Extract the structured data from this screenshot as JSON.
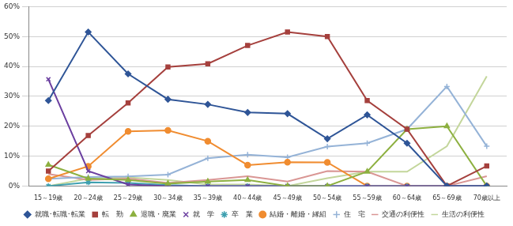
{
  "chart_data": {
    "type": "line",
    "categories": [
      "15～19歳",
      "20～24歳",
      "25～29歳",
      "30～34歳",
      "35～39歳",
      "40～44歳",
      "45～49歳",
      "50～54歳",
      "55～59歳",
      "60～64歳",
      "65～69歳",
      "70歳以上"
    ],
    "ylim": [
      0,
      60
    ],
    "yticks": [
      {
        "value": 0,
        "label": "0%"
      },
      {
        "value": 10,
        "label": "10%"
      },
      {
        "value": 20,
        "label": "20%"
      },
      {
        "value": 30,
        "label": "30%"
      },
      {
        "value": 40,
        "label": "40%"
      },
      {
        "value": 50,
        "label": "50%"
      },
      {
        "value": 60,
        "label": "60%"
      }
    ],
    "grid": true,
    "legend": "bottom",
    "series": [
      {
        "name": "就職･転職･転業",
        "color": "#2f5597",
        "marker": "diamond",
        "line_style": "solid",
        "values": [
          28.6,
          51.5,
          37.5,
          29.0,
          27.3,
          24.6,
          24.2,
          15.8,
          23.8,
          14.3,
          0,
          0
        ]
      },
      {
        "name": "転　勤",
        "color": "#a5403d",
        "marker": "square",
        "line_style": "solid",
        "values": [
          5.0,
          16.9,
          27.8,
          39.8,
          40.9,
          47.0,
          51.5,
          50.0,
          28.6,
          19.0,
          0,
          6.7
        ]
      },
      {
        "name": "退職・廃業",
        "color": "#8db040",
        "marker": "triangle",
        "line_style": "solid",
        "values": [
          7.1,
          2.5,
          2.0,
          0.8,
          1.5,
          2.0,
          0,
          0,
          4.8,
          19.0,
          20.0,
          0
        ]
      },
      {
        "name": "就　学",
        "color": "#6b3fa0",
        "marker": "cross",
        "line_style": "solid",
        "values": [
          35.7,
          5.0,
          0.5,
          0,
          0,
          0,
          0,
          0,
          0,
          0,
          0,
          0
        ]
      },
      {
        "name": "卒　業",
        "color": "#3fa0b0",
        "marker": "star",
        "line_style": "solid",
        "values": [
          0,
          1.2,
          1.0,
          0.3,
          0,
          0,
          0,
          0,
          0,
          0,
          0,
          0
        ]
      },
      {
        "name": "結婚・離婚・縁組",
        "color": "#f08c30",
        "marker": "circle",
        "line_style": "solid",
        "values": [
          2.4,
          6.6,
          18.3,
          18.6,
          15.0,
          7.0,
          8.0,
          7.9,
          0,
          0,
          0,
          0
        ]
      },
      {
        "name": "住　宅",
        "color": "#95b3d7",
        "marker": "plus",
        "line_style": "solid",
        "values": [
          2.4,
          3.0,
          3.2,
          3.8,
          9.3,
          10.5,
          9.6,
          13.2,
          14.3,
          19.0,
          33.3,
          13.3
        ]
      },
      {
        "name": "交通の利便性",
        "color": "#d99694",
        "marker": "none",
        "line_style": "solid",
        "values": [
          4.0,
          2.0,
          2.5,
          1.0,
          2.0,
          3.3,
          1.5,
          5.0,
          4.8,
          0,
          0,
          3.3
        ]
      },
      {
        "name": "生活の利便性",
        "color": "#c3d69b",
        "marker": "none",
        "line_style": "solid",
        "values": [
          0,
          2.5,
          2.9,
          2.0,
          0.5,
          0.5,
          0,
          2.6,
          4.8,
          4.8,
          13.3,
          36.7
        ]
      }
    ]
  }
}
